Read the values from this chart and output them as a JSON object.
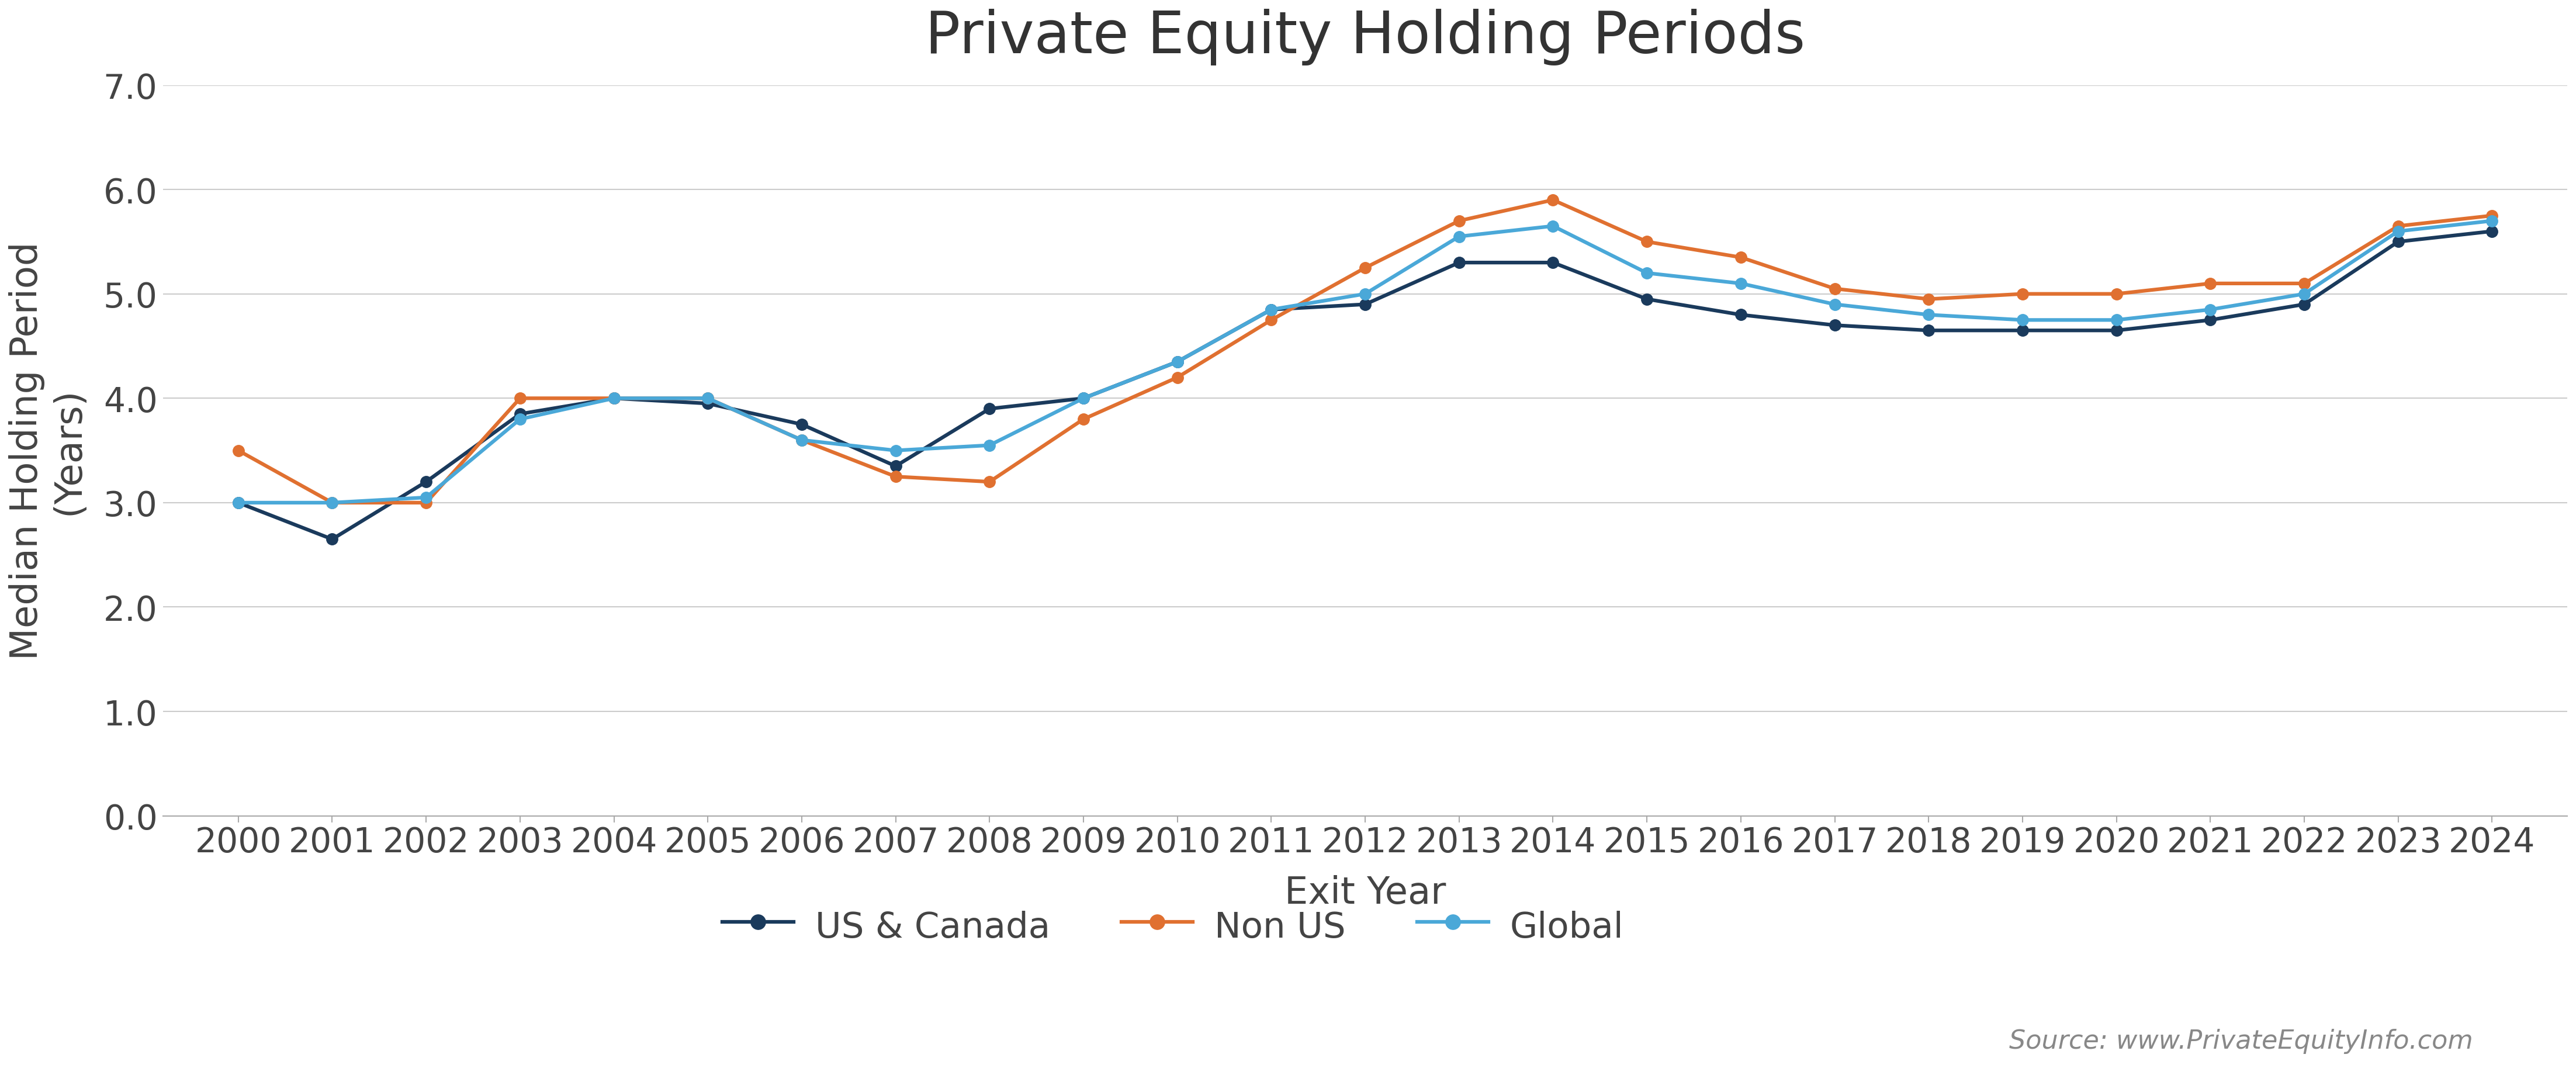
{
  "title": "Private Equity Holding Periods",
  "xlabel": "Exit Year",
  "ylabel_line1": "Median Holding Period",
  "ylabel_line2": "(Years)",
  "source": "Source: www.PrivateEquityInfo.com",
  "years": [
    2000,
    2001,
    2002,
    2003,
    2004,
    2005,
    2006,
    2007,
    2008,
    2009,
    2010,
    2011,
    2012,
    2013,
    2014,
    2015,
    2016,
    2017,
    2018,
    2019,
    2020,
    2021,
    2022,
    2023,
    2024
  ],
  "us_canada": [
    3.0,
    2.65,
    3.2,
    3.85,
    4.0,
    3.95,
    3.75,
    3.35,
    3.9,
    4.0,
    4.35,
    4.85,
    4.9,
    5.3,
    5.3,
    4.95,
    4.8,
    4.7,
    4.65,
    4.65,
    4.65,
    4.75,
    4.9,
    5.5,
    5.6
  ],
  "non_us": [
    3.5,
    3.0,
    3.0,
    4.0,
    4.0,
    4.0,
    3.6,
    3.25,
    3.2,
    3.8,
    4.2,
    4.75,
    5.25,
    5.7,
    5.9,
    5.5,
    5.35,
    5.05,
    4.95,
    5.0,
    5.0,
    5.1,
    5.1,
    5.65,
    5.75
  ],
  "global": [
    3.0,
    3.0,
    3.05,
    3.8,
    4.0,
    4.0,
    3.6,
    3.5,
    3.55,
    4.0,
    4.35,
    4.85,
    5.0,
    5.55,
    5.65,
    5.2,
    5.1,
    4.9,
    4.8,
    4.75,
    4.75,
    4.85,
    5.0,
    5.6,
    5.7
  ],
  "us_canada_color": "#1a3a5c",
  "non_us_color": "#e07030",
  "global_color": "#4aa8d8",
  "ylim": [
    0.0,
    7.0
  ],
  "yticks": [
    0.0,
    1.0,
    2.0,
    3.0,
    4.0,
    5.0,
    6.0,
    7.0
  ],
  "title_fontsize": 72,
  "label_fontsize": 46,
  "tick_fontsize": 42,
  "legend_fontsize": 44,
  "source_fontsize": 32,
  "linewidth": 4.5,
  "markersize": 14,
  "background_color": "#ffffff",
  "grid_color": "#cccccc"
}
